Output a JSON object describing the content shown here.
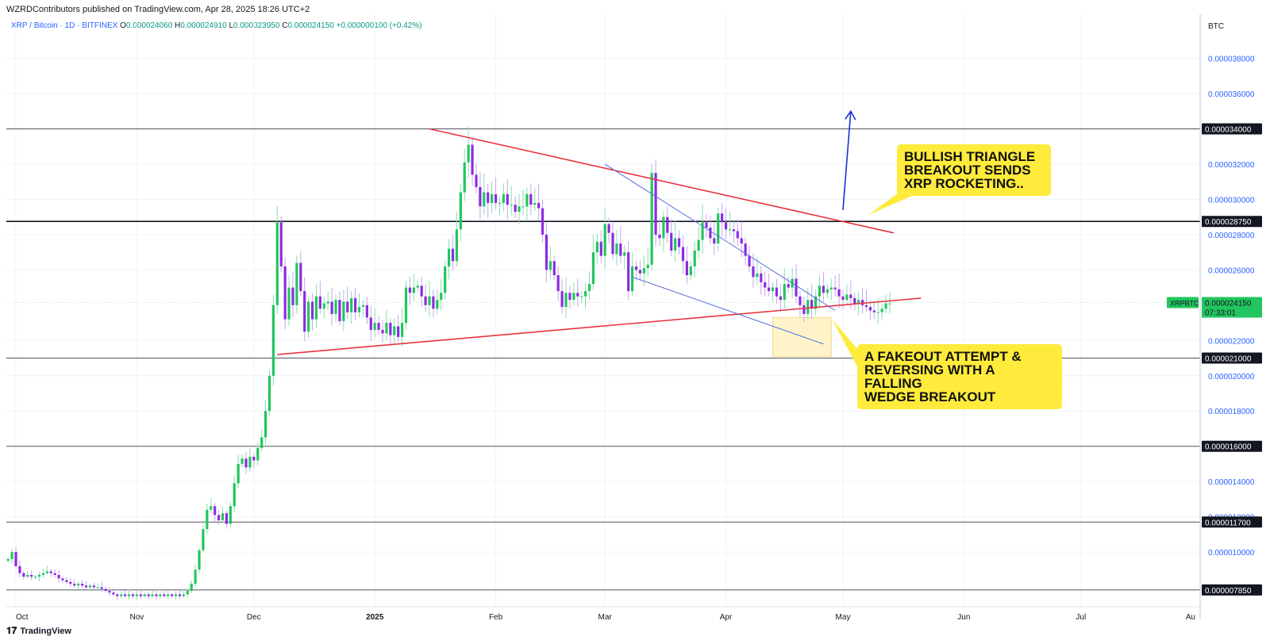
{
  "header": {
    "published": "WZRDContributors published on TradingView.com, Apr 28, 2025 18:26 UTC+2",
    "symbol": "XRP / Bitcoin · 1D · BITFINEX",
    "o_label": "O",
    "o": "0.000024060",
    "h_label": "H",
    "h": "0.000024910",
    "l_label": "L",
    "l": "0.000023950",
    "c_label": "C",
    "c": "0.000024150",
    "change": "+0.000000100 (+0.42%)"
  },
  "axis": {
    "currency": "BTC"
  },
  "footer": {
    "brand": "TradingView",
    "logo_icon": "tradingview-logo-icon"
  },
  "colors": {
    "up": "#22c55e",
    "down": "#8b2be2",
    "trendline": "#e8343f",
    "wedge": "#5b6ee1",
    "label_bg": "#ffeb3b",
    "highlight": "#fff3c4"
  },
  "annotations": {
    "triangle": "BULLISH TRIANGLE\nBREAKOUT SENDS\nXRP ROCKETING..",
    "fakeout": "A FAKEOUT ATTEMPT &\nREVERSING WITH A FALLING\nWEDGE BREAKOUT"
  },
  "chart_data": {
    "type": "candlestick",
    "x_ticks": [
      "Oct",
      "Nov",
      "Dec",
      "2025",
      "Feb",
      "Mar",
      "Apr",
      "May",
      "Jun",
      "Jul",
      "Au"
    ],
    "y_ticks": [
      "0.000038000",
      "0.000036000",
      "0.000032000",
      "0.000030000",
      "0.000028000",
      "0.000026000",
      "0.000022000",
      "0.000020000",
      "0.000018000",
      "0.000014000",
      "0.000012000",
      "0.000010000"
    ],
    "y_tick_values": [
      3.8e-05,
      3.6e-05,
      3.2e-05,
      3e-05,
      2.8e-05,
      2.6e-05,
      2.2e-05,
      2e-05,
      1.8e-05,
      1.4e-05,
      1.2e-05,
      1e-05
    ],
    "ylim": [
      6.9e-06,
      4.05e-05
    ],
    "horizontal_levels": [
      {
        "value": 3.4e-05,
        "label": "0.000034000"
      },
      {
        "value": 2.875e-05,
        "label": "0.000028750"
      },
      {
        "value": 2.1e-05,
        "label": "0.000021000"
      },
      {
        "value": 1.6e-05,
        "label": "0.000016000"
      },
      {
        "value": 1.17e-05,
        "label": "0.000011700"
      },
      {
        "value": 7.85e-06,
        "label": "0.000007850"
      }
    ],
    "last_price": {
      "symbol": "XRPBTC",
      "value": 2.415e-05,
      "label": "0.000024150",
      "countdown": "07:33:01"
    },
    "ohlc_daily_start": "2024-09-29",
    "closes": [
      9.6e-06,
      1e-05,
      9.2e-06,
      8.8e-06,
      8.6e-06,
      8.7e-06,
      8.6e-06,
      8.6e-06,
      8.7e-06,
      8.8e-06,
      8.9e-06,
      8.8e-06,
      8.7e-06,
      8.5e-06,
      8.4e-06,
      8.3e-06,
      8.2e-06,
      8.1e-06,
      8.2e-06,
      8.1e-06,
      8e-06,
      8.1e-06,
      8e-06,
      8e-06,
      7.9e-06,
      7.8e-06,
      7.7e-06,
      7.6e-06,
      7.5e-06,
      7.6e-06,
      7.5e-06,
      7.6e-06,
      7.5e-06,
      7.6e-06,
      7.5e-06,
      7.6e-06,
      7.5e-06,
      7.6e-06,
      7.5e-06,
      7.6e-06,
      7.5e-06,
      7.6e-06,
      7.5e-06,
      7.6e-06,
      7.5e-06,
      7.6e-06,
      7.8e-06,
      8.2e-06,
      9e-06,
      1.01e-05,
      1.13e-05,
      1.24e-05,
      1.26e-05,
      1.21e-05,
      1.18e-05,
      1.22e-05,
      1.16e-05,
      1.26e-05,
      1.39e-05,
      1.5e-05,
      1.53e-05,
      1.48e-05,
      1.54e-05,
      1.52e-05,
      1.59e-05,
      1.65e-05,
      1.8e-05,
      2e-05,
      2.4e-05,
      2.87e-05,
      2.62e-05,
      2.32e-05,
      2.5e-05,
      2.4e-05,
      2.64e-05,
      2.48e-05,
      2.25e-05,
      2.42e-05,
      2.32e-05,
      2.45e-05,
      2.38e-05,
      2.41e-05,
      2.42e-05,
      2.35e-05,
      2.43e-05,
      2.31e-05,
      2.42e-05,
      2.36e-05,
      2.44e-05,
      2.36e-05,
      2.39e-05,
      2.4e-05,
      2.33e-05,
      2.26e-05,
      2.3e-05,
      2.26e-05,
      2.24e-05,
      2.3e-05,
      2.23e-05,
      2.28e-05,
      2.22e-05,
      2.3e-05,
      2.5e-05,
      2.47e-05,
      2.5e-05,
      2.51e-05,
      2.45e-05,
      2.4e-05,
      2.45e-05,
      2.38e-05,
      2.43e-05,
      2.47e-05,
      2.62e-05,
      2.72e-05,
      2.65e-05,
      2.83e-05,
      3.04e-05,
      3.21e-05,
      3.31e-05,
      3.14e-05,
      3.07e-05,
      2.96e-05,
      3.04e-05,
      2.98e-05,
      3.03e-05,
      2.98e-05,
      2.98e-05,
      3.03e-05,
      2.97e-05,
      2.97e-05,
      2.93e-05,
      2.96e-05,
      2.96e-05,
      3.03e-05,
      2.97e-05,
      2.98e-05,
      2.95e-05,
      2.8e-05,
      2.6e-05,
      2.65e-05,
      2.57e-05,
      2.48e-05,
      2.39e-05,
      2.47e-05,
      2.43e-05,
      2.47e-05,
      2.45e-05,
      2.45e-05,
      2.48e-05,
      2.52e-05,
      2.7e-05,
      2.76e-05,
      2.68e-05,
      2.86e-05,
      2.81e-05,
      2.69e-05,
      2.75e-05,
      2.68e-05,
      2.7e-05,
      2.48e-05,
      2.62e-05,
      2.6e-05,
      2.58e-05,
      2.61e-05,
      2.63e-05,
      3.15e-05,
      2.8e-05,
      2.78e-05,
      2.9e-05,
      2.81e-05,
      2.71e-05,
      2.78e-05,
      2.73e-05,
      2.65e-05,
      2.57e-05,
      2.62e-05,
      2.71e-05,
      2.77e-05,
      2.87e-05,
      2.84e-05,
      2.78e-05,
      2.75e-05,
      2.92e-05,
      2.87e-05,
      2.83e-05,
      2.83e-05,
      2.82e-05,
      2.78e-05,
      2.75e-05,
      2.68e-05,
      2.62e-05,
      2.56e-05,
      2.58e-05,
      2.53e-05,
      2.5e-05,
      2.48e-05,
      2.5e-05,
      2.45e-05,
      2.43e-05,
      2.52e-05,
      2.5e-05,
      2.55e-05,
      2.45e-05,
      2.4e-05,
      2.35e-05,
      2.43e-05,
      2.38e-05,
      2.45e-05,
      2.51e-05,
      2.47e-05,
      2.49e-05,
      2.5e-05,
      2.49e-05,
      2.45e-05,
      2.43e-05,
      2.46e-05,
      2.44e-05,
      2.41e-05,
      2.43e-05,
      2.4e-05,
      2.39e-05,
      2.37e-05,
      2.36e-05,
      2.36e-05,
      2.38e-05,
      2.41e-05,
      2.41e-05
    ],
    "trendlines": [
      {
        "name": "triangle-upper",
        "from": [
          "2025-01-15",
          3.4e-05
        ],
        "to": [
          "2025-05-14",
          2.81e-05
        ]
      },
      {
        "name": "triangle-lower",
        "from": [
          "2024-12-07",
          2.12e-05
        ],
        "to": [
          "2025-05-21",
          2.44e-05
        ]
      },
      {
        "name": "wedge-upper",
        "from": [
          "2025-03-01",
          3.2e-05
        ],
        "to": [
          "2025-04-29",
          2.37e-05
        ]
      },
      {
        "name": "wedge-lower",
        "from": [
          "2025-03-08",
          2.56e-05
        ],
        "to": [
          "2025-04-26",
          2.18e-05
        ]
      }
    ],
    "breakout_arrow": {
      "from": [
        "2025-05-01",
        2.94e-05
      ],
      "to": [
        "2025-05-03",
        3.5e-05
      ]
    },
    "highlight_zone": {
      "from": "2025-04-13",
      "to": "2025-04-28",
      "y": [
        2.11e-05,
        2.33e-05
      ]
    }
  }
}
